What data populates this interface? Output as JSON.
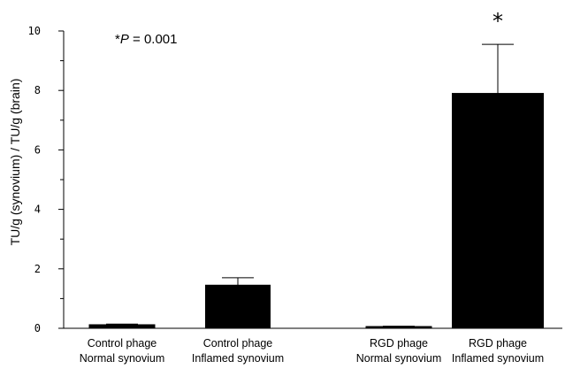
{
  "chart_data": {
    "type": "bar",
    "categories": [
      [
        "Control phage",
        "Normal synovium"
      ],
      [
        "Control phage",
        "Inflamed synovium"
      ],
      [
        "RGD phage",
        "Normal synovium"
      ],
      [
        "RGD phage",
        "Inflamed synovium"
      ]
    ],
    "values": [
      0.12,
      1.45,
      0.02,
      7.9
    ],
    "errors": [
      0.02,
      0.25,
      0.05,
      1.65
    ],
    "ylabel": "TU/g (synovium) / TU/g (brain)",
    "ylim": [
      0,
      10
    ],
    "yticks": [
      "0",
      "2",
      "4",
      "6",
      "8",
      "10"
    ],
    "bar_color": "#000000",
    "annotation": {
      "star": "*",
      "p_prefix": "*",
      "p_symbol": "P",
      "p_value": " = 0.001"
    },
    "grid": false
  }
}
